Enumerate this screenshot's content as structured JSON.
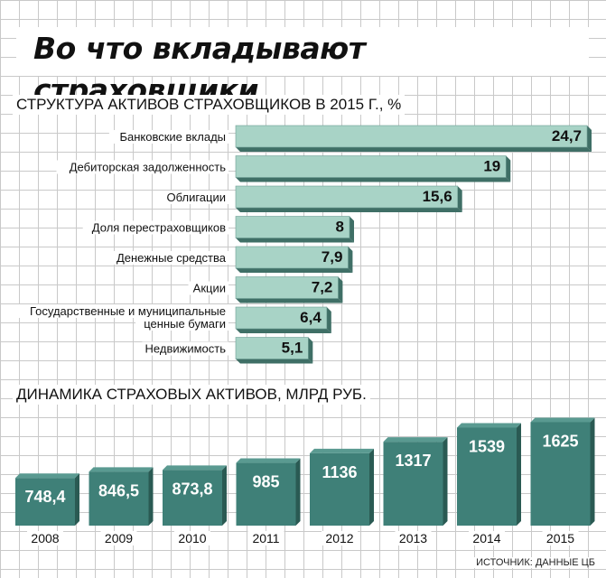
{
  "title": "Во что вкладывают страховщики",
  "source": "ИСТОЧНИК: ДАННЫЕ ЦБ",
  "colors": {
    "bar_fill": "#a8d3c6",
    "bar_side": "#3f6f66",
    "column_fill": "#3f8078",
    "column_side": "#2a5a53",
    "value_text_dark": "#111111",
    "value_text_light": "#ffffff"
  },
  "chart_data": [
    {
      "type": "bar",
      "title": "СТРУКТУРА АКТИВОВ СТРАХОВЩИКОВ В 2015 Г., %",
      "categories": [
        "Банковские вклады",
        "Дебиторская задолженность",
        "Облигации",
        "Доля перестраховщиков",
        "Денежные средства",
        "Акции",
        "Государственные и муниципальные ценные бумаги",
        "Недвижимость"
      ],
      "values": [
        24.7,
        19,
        15.6,
        8,
        7.9,
        7.2,
        6.4,
        5.1
      ],
      "value_labels": [
        "24,7",
        "19",
        "15,6",
        "8",
        "7,9",
        "7,2",
        "6,4",
        "5,1"
      ]
    },
    {
      "type": "bar",
      "title": "ДИНАМИКА СТРАХОВЫХ АКТИВОВ, МЛРД РУБ.",
      "categories": [
        "2008",
        "2009",
        "2010",
        "2011",
        "2012",
        "2013",
        "2014",
        "2015"
      ],
      "values": [
        748.4,
        846.5,
        873.8,
        985,
        1136,
        1317,
        1539,
        1625
      ],
      "value_labels": [
        "748,4",
        "846,5",
        "873,8",
        "985",
        "1136",
        "1317",
        "1539",
        "1625"
      ]
    }
  ]
}
